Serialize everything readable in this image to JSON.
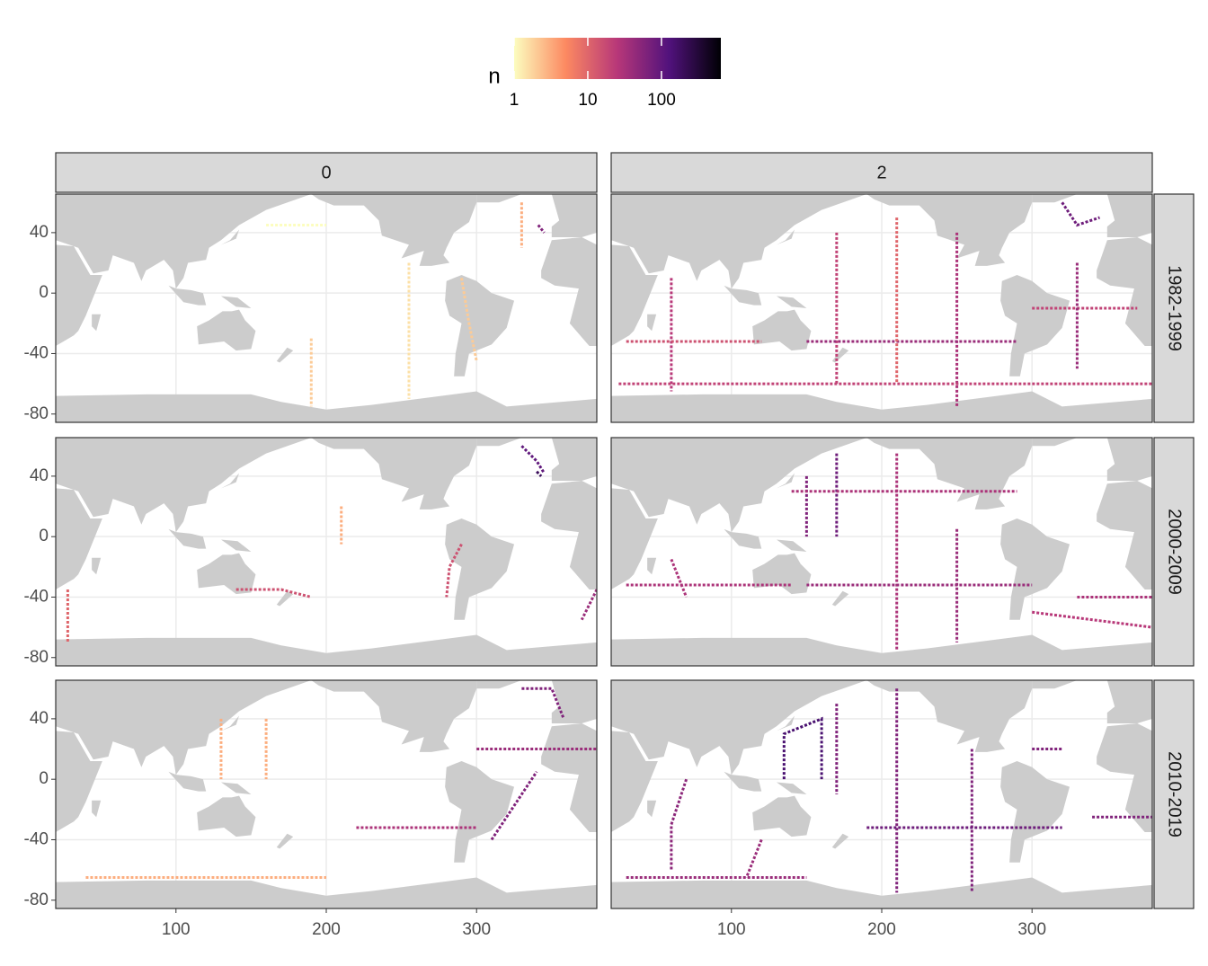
{
  "chart_data": {
    "type": "tile",
    "legend_title": "n",
    "color_scale": {
      "log": true,
      "lim": [
        1,
        640
      ],
      "ticks": [
        1,
        10,
        100
      ],
      "colors": [
        "#fcfdbf",
        "#fc8961",
        "#b73779",
        "#51127c",
        "#000004"
      ]
    },
    "col_labels": [
      "0",
      "2"
    ],
    "row_labels": [
      "1982-1999",
      "2000-2009",
      "2010-2019"
    ],
    "xlim": [
      20,
      380
    ],
    "xticks": [
      100,
      200,
      300
    ],
    "ylim": [
      -85.5,
      65.5
    ],
    "yticks": [
      40,
      0,
      -40,
      -80
    ],
    "grid": true,
    "panels": [
      [
        {
          "tracks": [
            {
              "lon": [
                330,
                330
              ],
              "lat": [
                60,
                30
              ],
              "n": 3
            },
            {
              "lon": [
                290,
                295,
                300
              ],
              "lat": [
                10,
                -20,
                -45
              ],
              "n": 2
            },
            {
              "lon": [
                341,
                345
              ],
              "lat": [
                45,
                40
              ],
              "n": 60
            },
            {
              "lon": [
                255,
                255
              ],
              "lat": [
                20,
                -70
              ],
              "n": 1.5
            },
            {
              "lon": [
                160,
                200
              ],
              "lat": [
                45,
                45
              ],
              "n": 1
            },
            {
              "lon": [
                190,
                190
              ],
              "lat": [
                -30,
                -75
              ],
              "n": 2
            }
          ]
        },
        {
          "tracks": [
            {
              "lon": [
                250,
                250
              ],
              "lat": [
                40,
                -75
              ],
              "n": 30
            },
            {
              "lon": [
                170,
                170
              ],
              "lat": [
                40,
                -60
              ],
              "n": 20
            },
            {
              "lon": [
                60,
                60
              ],
              "lat": [
                10,
                -65
              ],
              "n": 25
            },
            {
              "lon": [
                30,
                120
              ],
              "lat": [
                -32,
                -32
              ],
              "n": 15
            },
            {
              "lon": [
                150,
                290
              ],
              "lat": [
                -32,
                -32
              ],
              "n": 40
            },
            {
              "lon": [
                300,
                370
              ],
              "lat": [
                -10,
                -10
              ],
              "n": 20
            },
            {
              "lon": [
                320,
                330,
                345
              ],
              "lat": [
                60,
                45,
                50
              ],
              "n": 80
            },
            {
              "lon": [
                330,
                330
              ],
              "lat": [
                20,
                -50
              ],
              "n": 40
            },
            {
              "lon": [
                210,
                210
              ],
              "lat": [
                50,
                -60
              ],
              "n": 10
            },
            {
              "lon": [
                25,
                380
              ],
              "lat": [
                -60,
                -60
              ],
              "n": 20
            }
          ]
        }
      ],
      [
        {
          "tracks": [
            {
              "lon": [
                330,
                340,
                345
              ],
              "lat": [
                60,
                50,
                42
              ],
              "n": 100
            },
            {
              "lon": [
                340,
                343
              ],
              "lat": [
                43,
                40
              ],
              "n": 200
            },
            {
              "lon": [
                290,
                282,
                280
              ],
              "lat": [
                -5,
                -20,
                -40
              ],
              "n": 15
            },
            {
              "lon": [
                380,
                370
              ],
              "lat": [
                -35,
                -55
              ],
              "n": 40
            },
            {
              "lon": [
                140,
                170,
                190
              ],
              "lat": [
                -35,
                -35,
                -40
              ],
              "n": 15
            },
            {
              "lon": [
                28,
                28
              ],
              "lat": [
                -35,
                -70
              ],
              "n": 10
            },
            {
              "lon": [
                210,
                210
              ],
              "lat": [
                20,
                -5
              ],
              "n": 3
            }
          ]
        },
        {
          "tracks": [
            {
              "lon": [
                170,
                170
              ],
              "lat": [
                55,
                0
              ],
              "n": 80
            },
            {
              "lon": [
                150,
                150
              ],
              "lat": [
                40,
                0
              ],
              "n": 60
            },
            {
              "lon": [
                210,
                210
              ],
              "lat": [
                55,
                -75
              ],
              "n": 30
            },
            {
              "lon": [
                250,
                250
              ],
              "lat": [
                5,
                -70
              ],
              "n": 40
            },
            {
              "lon": [
                30,
                140
              ],
              "lat": [
                -32,
                -32
              ],
              "n": 30
            },
            {
              "lon": [
                150,
                300
              ],
              "lat": [
                -32,
                -32
              ],
              "n": 40
            },
            {
              "lon": [
                60,
                70
              ],
              "lat": [
                -15,
                -40
              ],
              "n": 30
            },
            {
              "lon": [
                140,
                290
              ],
              "lat": [
                30,
                30
              ],
              "n": 30
            },
            {
              "lon": [
                330,
                380
              ],
              "lat": [
                -40,
                -40
              ],
              "n": 30
            },
            {
              "lon": [
                300,
                380
              ],
              "lat": [
                -50,
                -60
              ],
              "n": 25
            }
          ]
        }
      ],
      [
        {
          "tracks": [
            {
              "lon": [
                330,
                350,
                358
              ],
              "lat": [
                60,
                60,
                40
              ],
              "n": 60
            },
            {
              "lon": [
                310,
                340
              ],
              "lat": [
                -40,
                5
              ],
              "n": 60
            },
            {
              "lon": [
                220,
                300
              ],
              "lat": [
                -32,
                -32
              ],
              "n": 30
            },
            {
              "lon": [
                300,
                380
              ],
              "lat": [
                20,
                20
              ],
              "n": 40
            },
            {
              "lon": [
                130,
                130
              ],
              "lat": [
                40,
                0
              ],
              "n": 3
            },
            {
              "lon": [
                160,
                160
              ],
              "lat": [
                40,
                0
              ],
              "n": 3
            },
            {
              "lon": [
                40,
                200
              ],
              "lat": [
                -65,
                -65
              ],
              "n": 3
            }
          ]
        },
        {
          "tracks": [
            {
              "lon": [
                135,
                135,
                160,
                160
              ],
              "lat": [
                0,
                30,
                40,
                0
              ],
              "n": 150
            },
            {
              "lon": [
                170,
                170
              ],
              "lat": [
                50,
                -10
              ],
              "n": 60
            },
            {
              "lon": [
                210,
                210
              ],
              "lat": [
                60,
                -75
              ],
              "n": 60
            },
            {
              "lon": [
                260,
                260
              ],
              "lat": [
                20,
                -75
              ],
              "n": 60
            },
            {
              "lon": [
                190,
                320
              ],
              "lat": [
                -32,
                -32
              ],
              "n": 80
            },
            {
              "lon": [
                340,
                380
              ],
              "lat": [
                -25,
                -25
              ],
              "n": 60
            },
            {
              "lon": [
                70,
                60,
                60
              ],
              "lat": [
                0,
                -30,
                -60
              ],
              "n": 50
            },
            {
              "lon": [
                120,
                110
              ],
              "lat": [
                -40,
                -65
              ],
              "n": 40
            },
            {
              "lon": [
                30,
                150
              ],
              "lat": [
                -65,
                -65
              ],
              "n": 40
            },
            {
              "lon": [
                300,
                320
              ],
              "lat": [
                20,
                20
              ],
              "n": 60
            }
          ]
        }
      ]
    ]
  }
}
